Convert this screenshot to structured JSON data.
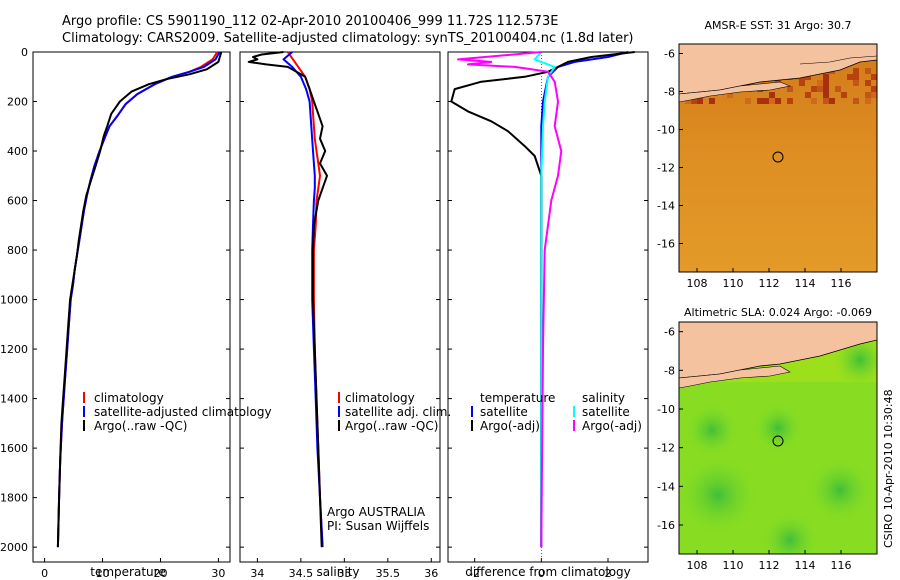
{
  "header": {
    "line1": "Argo profile: CS 5901190_112 02-Apr-2010 20100406_999 11.72S 112.573E",
    "line2": "Climatology: CARS2009. Satellite-adjusted climatology: synTS_20100404.nc (1.8d later)"
  },
  "credit": "CSIRO 10-Apr-2010 10:30:48",
  "chart_data": [
    {
      "id": "temperature",
      "type": "line",
      "xlabel": "temperature",
      "ylabel": "",
      "xlim": [
        -2,
        32
      ],
      "ylim": [
        2060,
        0
      ],
      "x_ticks": [
        0,
        10,
        20,
        30
      ],
      "y_ticks": [
        0,
        200,
        400,
        600,
        800,
        1000,
        1200,
        1400,
        1600,
        1800,
        2000
      ],
      "legend": [
        "climatology",
        "satellite-adjusted climatology",
        "Argo(..raw -QC)"
      ],
      "series": [
        {
          "name": "climatology",
          "color": "#ff0000",
          "x": [
            29.8,
            29.0,
            27.0,
            25.0,
            22.0,
            19.0,
            16.0,
            14.0,
            12.5,
            11.2,
            10.5,
            9.5,
            8.6,
            7.9,
            7.3,
            6.8,
            6.4,
            6.0,
            5.6,
            5.2,
            4.9,
            4.5,
            4.2,
            3.9,
            3.6,
            3.3,
            3.0,
            2.7,
            2.5,
            2.3
          ],
          "y": [
            0,
            30,
            60,
            80,
            100,
            130,
            170,
            210,
            260,
            300,
            340,
            400,
            460,
            520,
            580,
            640,
            700,
            760,
            820,
            880,
            940,
            1000,
            1100,
            1200,
            1300,
            1400,
            1500,
            1650,
            1800,
            2000
          ]
        },
        {
          "name": "satellite-adjusted climatology",
          "color": "#0000ff",
          "x": [
            30.2,
            29.5,
            27.5,
            25.0,
            22.0,
            19.0,
            16.0,
            14.0,
            12.5,
            11.2,
            10.5,
            9.5,
            8.6,
            7.9,
            7.3,
            6.8,
            6.4,
            6.0,
            5.6,
            5.2,
            4.9,
            4.5,
            4.2,
            3.9,
            3.6,
            3.3,
            3.0,
            2.7,
            2.5,
            2.3
          ],
          "y": [
            0,
            30,
            60,
            80,
            100,
            130,
            170,
            210,
            260,
            300,
            340,
            400,
            460,
            520,
            580,
            640,
            700,
            760,
            820,
            880,
            940,
            1000,
            1100,
            1200,
            1300,
            1400,
            1500,
            1650,
            1800,
            2000
          ]
        },
        {
          "name": "Argo(..raw -QC)",
          "color": "#000000",
          "x": [
            30.5,
            30.0,
            28.0,
            25.0,
            21.0,
            18.0,
            15.0,
            13.0,
            11.5,
            10.8,
            10.2,
            9.6,
            8.8,
            8.0,
            7.2,
            6.7,
            6.3,
            5.9,
            5.6,
            5.2,
            4.8,
            4.4,
            4.1,
            3.8,
            3.5,
            3.2,
            2.9,
            2.7,
            2.5,
            2.3
          ],
          "y": [
            0,
            40,
            70,
            90,
            110,
            130,
            160,
            200,
            250,
            300,
            340,
            400,
            460,
            520,
            580,
            640,
            700,
            760,
            820,
            880,
            940,
            1000,
            1100,
            1200,
            1300,
            1400,
            1500,
            1650,
            1800,
            2000
          ]
        }
      ]
    },
    {
      "id": "salinity",
      "type": "line",
      "xlabel": "salinity",
      "ylabel": "",
      "xlim": [
        33.8,
        36.1
      ],
      "ylim": [
        2060,
        0
      ],
      "x_ticks": [
        34,
        34.5,
        35,
        35.5,
        36
      ],
      "legend": [
        "climatology",
        "satellite adj. clim.",
        "Argo(..raw -QC)"
      ],
      "annotation": [
        "Argo AUSTRALIA",
        "PI: Susan Wijffels"
      ],
      "series": [
        {
          "name": "climatology",
          "color": "#ff0000",
          "x": [
            34.35,
            34.45,
            34.55,
            34.6,
            34.63,
            34.65,
            34.66,
            34.68,
            34.7,
            34.72,
            34.7,
            34.68,
            34.67,
            34.65,
            34.65,
            34.66,
            34.68,
            34.7,
            34.72,
            34.75
          ],
          "y": [
            0,
            50,
            100,
            150,
            200,
            300,
            350,
            400,
            450,
            500,
            550,
            600,
            700,
            800,
            1000,
            1200,
            1400,
            1600,
            1800,
            2000
          ]
        },
        {
          "name": "satellite adj. clim.",
          "color": "#0000ff",
          "x": [
            34.4,
            34.3,
            34.4,
            34.5,
            34.56,
            34.6,
            34.62,
            34.64,
            34.65,
            34.66,
            34.66,
            34.65,
            34.64,
            34.63,
            34.63,
            34.65,
            34.67,
            34.69,
            34.72,
            34.75
          ],
          "y": [
            0,
            30,
            60,
            100,
            150,
            200,
            300,
            400,
            450,
            500,
            550,
            600,
            700,
            800,
            1000,
            1200,
            1400,
            1600,
            1800,
            2000
          ]
        },
        {
          "name": "Argo(..raw -QC)",
          "color": "#000000",
          "x": [
            34.3,
            34.05,
            33.95,
            34.0,
            33.9,
            34.1,
            34.35,
            34.45,
            34.55,
            34.6,
            34.65,
            34.7,
            34.75,
            34.72,
            34.78,
            34.72,
            34.8,
            34.75,
            34.7,
            34.65,
            34.64,
            34.64,
            34.66,
            34.68,
            34.7,
            34.72,
            34.74
          ],
          "y": [
            0,
            10,
            20,
            30,
            40,
            50,
            60,
            80,
            100,
            150,
            200,
            250,
            300,
            350,
            400,
            450,
            500,
            550,
            600,
            700,
            800,
            1000,
            1200,
            1400,
            1600,
            1800,
            2000
          ]
        }
      ]
    },
    {
      "id": "difference",
      "type": "line",
      "xlabel": "difference from climatology",
      "ylabel": "",
      "xlim": [
        -2.8,
        3.2
      ],
      "ylim": [
        2060,
        0
      ],
      "x_ticks": [
        -2,
        0,
        2
      ],
      "legend_groups": [
        {
          "title": "temperature",
          "items": [
            "satellite",
            "Argo(-adj)"
          ]
        },
        {
          "title": "salinity",
          "items": [
            "satellite",
            "Argo(-adj)"
          ]
        }
      ],
      "series": [
        {
          "name": "temperature satellite",
          "color": "#0000ff",
          "x": [
            2.6,
            2.0,
            1.0,
            0.5,
            0.2,
            0.05,
            0.0,
            0.0,
            0.0,
            0.0,
            0.0,
            0.0,
            0.0
          ],
          "y": [
            0,
            20,
            40,
            60,
            100,
            200,
            300,
            400,
            600,
            1000,
            1400,
            1800,
            2000
          ]
        },
        {
          "name": "temperature Argo(-adj)",
          "color": "#000000",
          "x": [
            2.8,
            1.5,
            0.8,
            0.5,
            0.2,
            -0.5,
            -1.8,
            -2.6,
            -2.7,
            -2.2,
            -1.5,
            -1.0,
            -0.5,
            -0.2,
            0.0,
            0.0,
            0.0,
            0.0
          ],
          "y": [
            0,
            20,
            40,
            60,
            80,
            100,
            120,
            150,
            200,
            240,
            280,
            320,
            380,
            420,
            500,
            700,
            1000,
            2000
          ]
        },
        {
          "name": "salinity satellite",
          "color": "#00ffff",
          "x": [
            0.0,
            -0.2,
            0.4,
            0.2,
            0.1,
            0.05,
            0.0,
            0.0,
            0.0,
            0.0
          ],
          "y": [
            0,
            30,
            60,
            100,
            200,
            300,
            500,
            1000,
            1500,
            2000
          ]
        },
        {
          "name": "salinity Argo(-adj)",
          "color": "#ff00ff",
          "x": [
            0.0,
            -2.5,
            -1.5,
            -2.2,
            -0.8,
            -0.3,
            0.2,
            0.4,
            0.5,
            0.4,
            0.6,
            0.5,
            0.3,
            0.1,
            0.05,
            0.0
          ],
          "y": [
            0,
            30,
            40,
            50,
            60,
            70,
            80,
            120,
            200,
            300,
            400,
            500,
            600,
            800,
            1200,
            2000
          ]
        }
      ]
    },
    {
      "id": "sst_map",
      "type": "heatmap",
      "title": "AMSR-E SST: 31  Argo: 30.7",
      "xlim": [
        107,
        118
      ],
      "ylim": [
        -17.5,
        -5.5
      ],
      "x_ticks": [
        108,
        110,
        112,
        114,
        116
      ],
      "y_ticks": [
        -6,
        -8,
        -10,
        -12,
        -14,
        -16
      ],
      "marker": {
        "lon": 112.57,
        "lat": -11.72
      }
    },
    {
      "id": "sla_map",
      "type": "heatmap",
      "title": "Altimetric SLA: 0.024  Argo: -0.069",
      "xlim": [
        107,
        118
      ],
      "ylim": [
        -17.5,
        -5.5
      ],
      "x_ticks": [
        108,
        110,
        112,
        114,
        116
      ],
      "y_ticks": [
        -6,
        -8,
        -10,
        -12,
        -14,
        -16
      ],
      "marker": {
        "lon": 112.57,
        "lat": -11.72
      }
    }
  ]
}
